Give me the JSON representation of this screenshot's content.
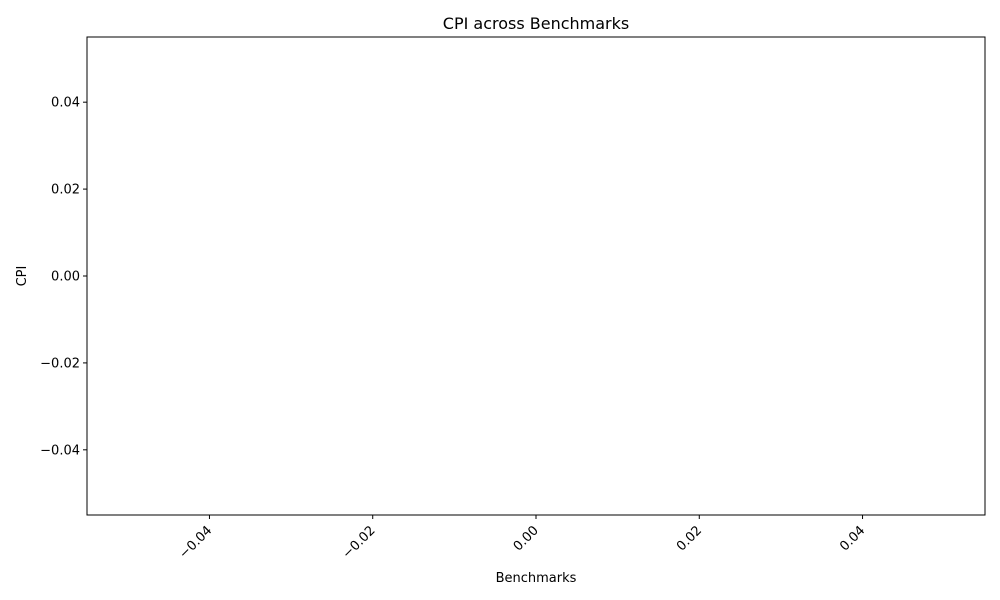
{
  "chart_data": {
    "type": "bar",
    "title": "CPI across Benchmarks",
    "xlabel": "Benchmarks",
    "ylabel": "CPI",
    "categories": [],
    "values": [],
    "xlim": [
      -0.055,
      0.055
    ],
    "ylim": [
      -0.055,
      0.055
    ],
    "xticks": [
      {
        "value": -0.04,
        "label": "−0.04"
      },
      {
        "value": -0.02,
        "label": "−0.02"
      },
      {
        "value": 0.0,
        "label": "0.00"
      },
      {
        "value": 0.02,
        "label": "0.02"
      },
      {
        "value": 0.04,
        "label": "0.04"
      }
    ],
    "yticks": [
      {
        "value": 0.04,
        "label": "0.04"
      },
      {
        "value": 0.02,
        "label": "0.02"
      },
      {
        "value": 0.0,
        "label": "0.00"
      },
      {
        "value": -0.02,
        "label": "−0.02"
      },
      {
        "value": -0.04,
        "label": "−0.04"
      }
    ],
    "grid": false,
    "x_tick_rotation_deg": 45
  }
}
